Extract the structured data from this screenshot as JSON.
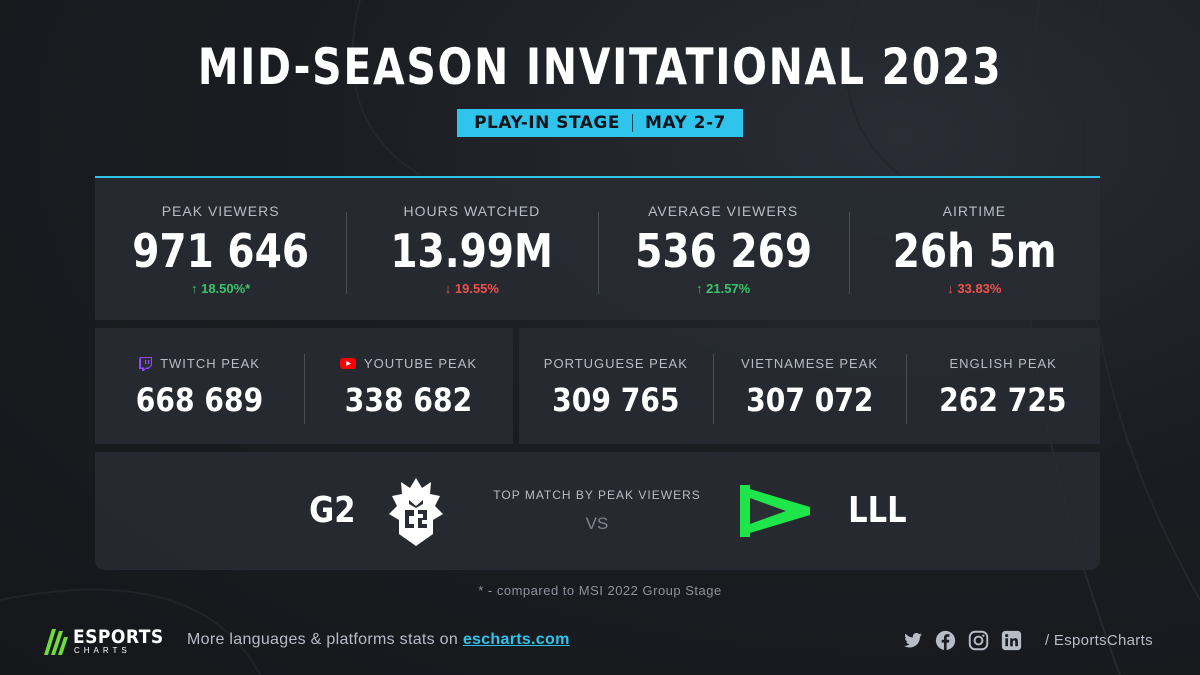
{
  "header": {
    "title": "MID-SEASON INVITATIONAL 2023",
    "stage": "PLAY-IN STAGE",
    "dates": "MAY 2-7"
  },
  "stats": [
    {
      "label": "PEAK VIEWERS",
      "value": "971 646",
      "change": "↑ 18.50%*",
      "direction": "up"
    },
    {
      "label": "HOURS WATCHED",
      "value": "13.99M",
      "change": "↓ 19.55%",
      "direction": "down"
    },
    {
      "label": "AVERAGE VIEWERS",
      "value": "536 269",
      "change": "↑ 21.57%",
      "direction": "up"
    },
    {
      "label": "AIRTIME",
      "value": "26h 5m",
      "change": "↓ 33.83%",
      "direction": "down"
    }
  ],
  "platforms": [
    {
      "label": "TWITCH PEAK",
      "value": "668 689",
      "icon": "twitch-icon"
    },
    {
      "label": "YOUTUBE PEAK",
      "value": "338 682",
      "icon": "youtube-icon"
    }
  ],
  "languages": [
    {
      "label": "PORTUGUESE PEAK",
      "value": "309 765"
    },
    {
      "label": "VIETNAMESE PEAK",
      "value": "307 072"
    },
    {
      "label": "ENGLISH PEAK",
      "value": "262 725"
    }
  ],
  "match": {
    "label": "TOP MATCH BY PEAK VIEWERS",
    "vs": "VS",
    "team_left": "G2",
    "team_right": "LLL"
  },
  "footnote": "* - compared to MSI 2022 Group Stage",
  "footer": {
    "brand": "ESPORTS",
    "brand_sub": "CHARTS",
    "text": "More languages & platforms stats on ",
    "link": "escharts.com",
    "handle": "/ EsportsCharts",
    "socials": [
      "twitter-icon",
      "facebook-icon",
      "instagram-icon",
      "linkedin-icon"
    ]
  },
  "colors": {
    "accent": "#2ec4ec",
    "up": "#39c66b",
    "down": "#f0524a",
    "lll_green": "#1ee54a",
    "twitch": "#9146ff",
    "youtube": "#ff0000"
  }
}
